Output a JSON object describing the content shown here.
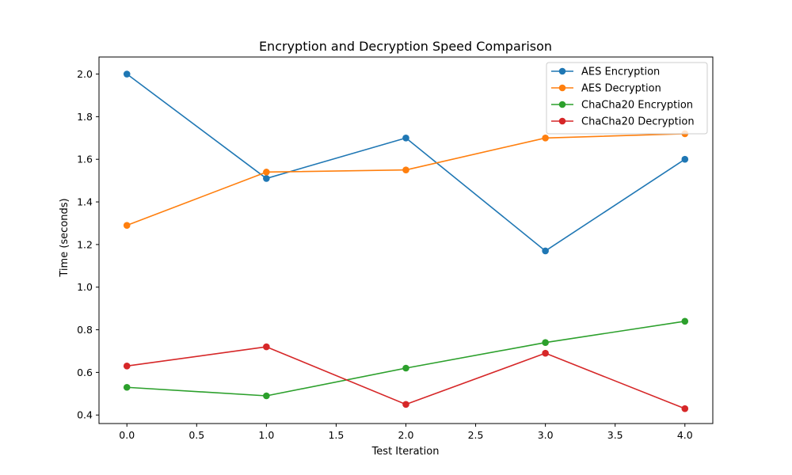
{
  "chart_data": {
    "type": "line",
    "title": "Encryption and Decryption Speed Comparison",
    "xlabel": "Test Iteration",
    "ylabel": "Time (seconds)",
    "xlim": [
      -0.2,
      4.2
    ],
    "ylim": [
      0.36,
      2.08
    ],
    "xticks": [
      0.0,
      0.5,
      1.0,
      1.5,
      2.0,
      2.5,
      3.0,
      3.5,
      4.0
    ],
    "xtick_labels": [
      "0.0",
      "0.5",
      "1.0",
      "1.5",
      "2.0",
      "2.5",
      "3.0",
      "3.5",
      "4.0"
    ],
    "yticks": [
      0.4,
      0.6,
      0.8,
      1.0,
      1.2,
      1.4,
      1.6,
      1.8,
      2.0
    ],
    "ytick_labels": [
      "0.4",
      "0.6",
      "0.8",
      "1.0",
      "1.2",
      "1.4",
      "1.6",
      "1.8",
      "2.0"
    ],
    "grid": false,
    "legend_position": "top-right",
    "x": [
      0,
      1,
      2,
      3,
      4
    ],
    "series": [
      {
        "name": "AES Encryption",
        "color": "#1f77b4",
        "values": [
          2.0,
          1.51,
          1.7,
          1.17,
          1.6
        ]
      },
      {
        "name": "AES Decryption",
        "color": "#ff7f0e",
        "values": [
          1.29,
          1.54,
          1.55,
          1.7,
          1.72
        ]
      },
      {
        "name": "ChaCha20 Encryption",
        "color": "#2ca02c",
        "values": [
          0.53,
          0.49,
          0.62,
          0.74,
          0.84
        ]
      },
      {
        "name": "ChaCha20 Decryption",
        "color": "#d62728",
        "values": [
          0.63,
          0.72,
          0.45,
          0.69,
          0.43
        ]
      }
    ]
  }
}
